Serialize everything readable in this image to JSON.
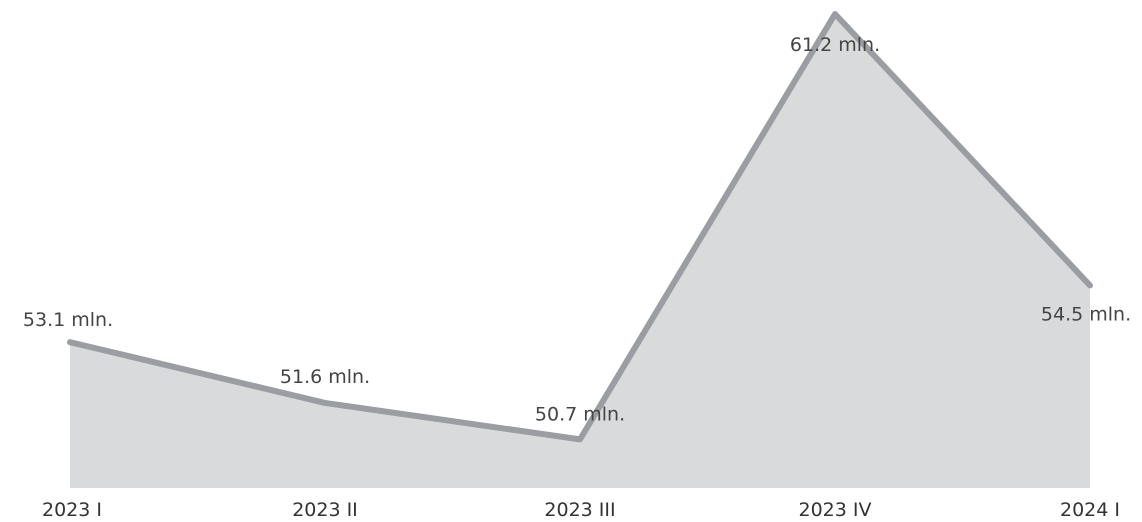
{
  "chart_data": {
    "type": "area",
    "categories": [
      "2023 I",
      "2023 II",
      "2023 III",
      "2023 IV",
      "2024 I"
    ],
    "values": [
      53.1,
      51.6,
      50.7,
      61.2,
      54.5
    ],
    "data_labels": [
      "53.1 mln.",
      "51.6 mln.",
      "50.7 mln.",
      "61.2 mln.",
      "54.5 mln."
    ],
    "title": "",
    "xlabel": "",
    "ylabel": "",
    "ylim": [
      49.5,
      61.2
    ],
    "grid": false,
    "legend": "none",
    "colors": {
      "area_fill": "#d9dadc",
      "line": "#9a9ea2",
      "text": "#333333"
    }
  }
}
